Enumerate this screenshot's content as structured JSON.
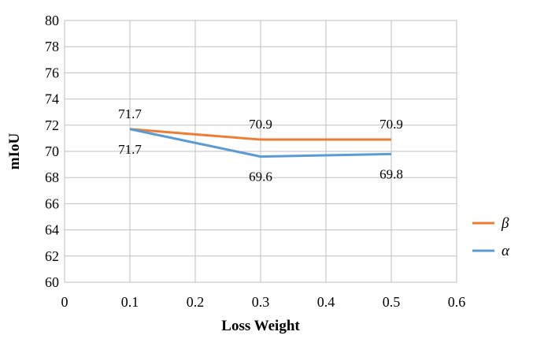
{
  "chart_data": {
    "type": "line",
    "title": "",
    "xlabel": "Loss Weight",
    "ylabel": "mIoU",
    "xlim": [
      0,
      0.6
    ],
    "ylim": [
      60,
      80
    ],
    "x_ticks": [
      "0",
      "0.1",
      "0.2",
      "0.3",
      "0.4",
      "0.5",
      "0.6"
    ],
    "y_ticks": [
      "60",
      "62",
      "64",
      "66",
      "68",
      "70",
      "72",
      "74",
      "76",
      "78",
      "80"
    ],
    "grid": true,
    "legend_position": "right",
    "series": [
      {
        "name": "β",
        "color": "#ed7d31",
        "x": [
          0.1,
          0.3,
          0.5
        ],
        "y": [
          71.7,
          70.9,
          70.9
        ],
        "labels": [
          "71.7",
          "70.9",
          "70.9"
        ],
        "label_position": "above"
      },
      {
        "name": "α",
        "color": "#5b9bd5",
        "x": [
          0.1,
          0.3,
          0.5
        ],
        "y": [
          71.7,
          69.6,
          69.8
        ],
        "labels": [
          "71.7",
          "69.6",
          "69.8"
        ],
        "label_position": "below"
      }
    ]
  }
}
